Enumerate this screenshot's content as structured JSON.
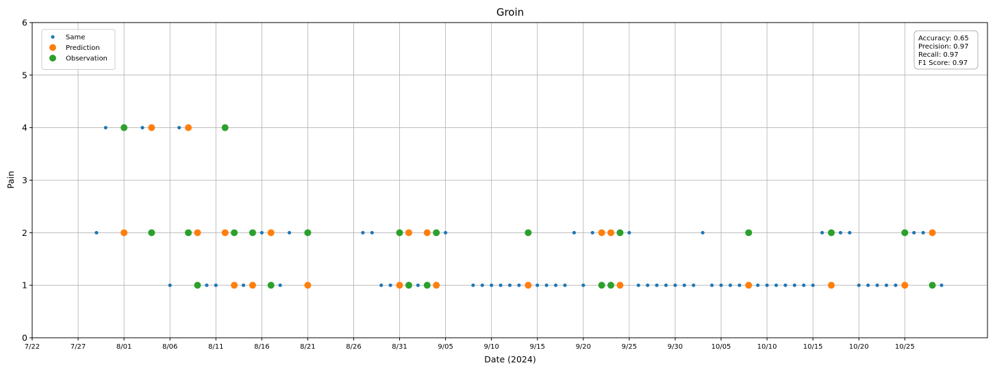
{
  "chart_data": {
    "type": "scatter",
    "title": "Groin",
    "xlabel": "Date (2024)",
    "ylabel": "Pain",
    "ylim": [
      0,
      6
    ],
    "xlim_days_from_jul22": [
      0,
      104
    ],
    "grid": true,
    "yticks": [
      "0",
      "1",
      "2",
      "3",
      "4",
      "5",
      "6"
    ],
    "xticks": [
      {
        "date": "2024-07-22",
        "label": "7/22"
      },
      {
        "date": "2024-07-27",
        "label": "7/27"
      },
      {
        "date": "2024-08-01",
        "label": "8/01"
      },
      {
        "date": "2024-08-06",
        "label": "8/06"
      },
      {
        "date": "2024-08-11",
        "label": "8/11"
      },
      {
        "date": "2024-08-16",
        "label": "8/16"
      },
      {
        "date": "2024-08-21",
        "label": "8/21"
      },
      {
        "date": "2024-08-26",
        "label": "8/26"
      },
      {
        "date": "2024-08-31",
        "label": "8/31"
      },
      {
        "date": "2024-09-05",
        "label": "9/05"
      },
      {
        "date": "2024-09-10",
        "label": "9/10"
      },
      {
        "date": "2024-09-15",
        "label": "9/15"
      },
      {
        "date": "2024-09-20",
        "label": "9/20"
      },
      {
        "date": "2024-09-25",
        "label": "9/25"
      },
      {
        "date": "2024-09-30",
        "label": "9/30"
      },
      {
        "date": "2024-10-05",
        "label": "10/05"
      },
      {
        "date": "2024-10-10",
        "label": "10/10"
      },
      {
        "date": "2024-10-15",
        "label": "10/15"
      },
      {
        "date": "2024-10-20",
        "label": "10/20"
      },
      {
        "date": "2024-10-25",
        "label": "10/25"
      }
    ],
    "legend_position": "top-left",
    "series": [
      {
        "name": "Same",
        "color": "#1f77b4",
        "marker": "small",
        "points": [
          {
            "x": "2024-07-29",
            "y": 2
          },
          {
            "x": "2024-07-30",
            "y": 4
          },
          {
            "x": "2024-08-03",
            "y": 4
          },
          {
            "x": "2024-08-06",
            "y": 1
          },
          {
            "x": "2024-08-07",
            "y": 4
          },
          {
            "x": "2024-08-10",
            "y": 1
          },
          {
            "x": "2024-08-11",
            "y": 1
          },
          {
            "x": "2024-08-14",
            "y": 1
          },
          {
            "x": "2024-08-16",
            "y": 2
          },
          {
            "x": "2024-08-18",
            "y": 1
          },
          {
            "x": "2024-08-19",
            "y": 2
          },
          {
            "x": "2024-08-27",
            "y": 2
          },
          {
            "x": "2024-08-28",
            "y": 2
          },
          {
            "x": "2024-08-29",
            "y": 1
          },
          {
            "x": "2024-08-30",
            "y": 1
          },
          {
            "x": "2024-09-02",
            "y": 1
          },
          {
            "x": "2024-09-05",
            "y": 2
          },
          {
            "x": "2024-09-08",
            "y": 1
          },
          {
            "x": "2024-09-09",
            "y": 1
          },
          {
            "x": "2024-09-10",
            "y": 1
          },
          {
            "x": "2024-09-11",
            "y": 1
          },
          {
            "x": "2024-09-12",
            "y": 1
          },
          {
            "x": "2024-09-13",
            "y": 1
          },
          {
            "x": "2024-09-15",
            "y": 1
          },
          {
            "x": "2024-09-16",
            "y": 1
          },
          {
            "x": "2024-09-17",
            "y": 1
          },
          {
            "x": "2024-09-18",
            "y": 1
          },
          {
            "x": "2024-09-19",
            "y": 2
          },
          {
            "x": "2024-09-20",
            "y": 1
          },
          {
            "x": "2024-09-21",
            "y": 2
          },
          {
            "x": "2024-09-25",
            "y": 2
          },
          {
            "x": "2024-09-26",
            "y": 1
          },
          {
            "x": "2024-09-27",
            "y": 1
          },
          {
            "x": "2024-09-28",
            "y": 1
          },
          {
            "x": "2024-09-29",
            "y": 1
          },
          {
            "x": "2024-09-30",
            "y": 1
          },
          {
            "x": "2024-10-01",
            "y": 1
          },
          {
            "x": "2024-10-02",
            "y": 1
          },
          {
            "x": "2024-10-03",
            "y": 2
          },
          {
            "x": "2024-10-04",
            "y": 1
          },
          {
            "x": "2024-10-05",
            "y": 1
          },
          {
            "x": "2024-10-06",
            "y": 1
          },
          {
            "x": "2024-10-07",
            "y": 1
          },
          {
            "x": "2024-10-09",
            "y": 1
          },
          {
            "x": "2024-10-10",
            "y": 1
          },
          {
            "x": "2024-10-11",
            "y": 1
          },
          {
            "x": "2024-10-12",
            "y": 1
          },
          {
            "x": "2024-10-13",
            "y": 1
          },
          {
            "x": "2024-10-14",
            "y": 1
          },
          {
            "x": "2024-10-15",
            "y": 1
          },
          {
            "x": "2024-10-16",
            "y": 2
          },
          {
            "x": "2024-10-18",
            "y": 2
          },
          {
            "x": "2024-10-19",
            "y": 2
          },
          {
            "x": "2024-10-20",
            "y": 1
          },
          {
            "x": "2024-10-21",
            "y": 1
          },
          {
            "x": "2024-10-22",
            "y": 1
          },
          {
            "x": "2024-10-23",
            "y": 1
          },
          {
            "x": "2024-10-24",
            "y": 1
          },
          {
            "x": "2024-10-26",
            "y": 2
          },
          {
            "x": "2024-10-27",
            "y": 2
          },
          {
            "x": "2024-10-29",
            "y": 1
          }
        ]
      },
      {
        "name": "Prediction",
        "color": "#ff7f0e",
        "marker": "large",
        "points": [
          {
            "x": "2024-08-01",
            "y": 2
          },
          {
            "x": "2024-08-04",
            "y": 4
          },
          {
            "x": "2024-08-08",
            "y": 4
          },
          {
            "x": "2024-08-09",
            "y": 2
          },
          {
            "x": "2024-08-12",
            "y": 2
          },
          {
            "x": "2024-08-13",
            "y": 1
          },
          {
            "x": "2024-08-15",
            "y": 1
          },
          {
            "x": "2024-08-17",
            "y": 2
          },
          {
            "x": "2024-08-21",
            "y": 1
          },
          {
            "x": "2024-08-31",
            "y": 1
          },
          {
            "x": "2024-09-01",
            "y": 2
          },
          {
            "x": "2024-09-03",
            "y": 2
          },
          {
            "x": "2024-09-04",
            "y": 1
          },
          {
            "x": "2024-09-14",
            "y": 1
          },
          {
            "x": "2024-09-22",
            "y": 2
          },
          {
            "x": "2024-09-23",
            "y": 2
          },
          {
            "x": "2024-09-24",
            "y": 1
          },
          {
            "x": "2024-10-08",
            "y": 1
          },
          {
            "x": "2024-10-17",
            "y": 1
          },
          {
            "x": "2024-10-25",
            "y": 1
          },
          {
            "x": "2024-10-28",
            "y": 2
          }
        ]
      },
      {
        "name": "Observation",
        "color": "#2ca02c",
        "marker": "large",
        "points": [
          {
            "x": "2024-08-01",
            "y": 4
          },
          {
            "x": "2024-08-04",
            "y": 2
          },
          {
            "x": "2024-08-08",
            "y": 2
          },
          {
            "x": "2024-08-09",
            "y": 1
          },
          {
            "x": "2024-08-12",
            "y": 4
          },
          {
            "x": "2024-08-13",
            "y": 2
          },
          {
            "x": "2024-08-15",
            "y": 2
          },
          {
            "x": "2024-08-17",
            "y": 1
          },
          {
            "x": "2024-08-21",
            "y": 2
          },
          {
            "x": "2024-08-31",
            "y": 2
          },
          {
            "x": "2024-09-01",
            "y": 1
          },
          {
            "x": "2024-09-03",
            "y": 1
          },
          {
            "x": "2024-09-04",
            "y": 2
          },
          {
            "x": "2024-09-14",
            "y": 2
          },
          {
            "x": "2024-09-22",
            "y": 1
          },
          {
            "x": "2024-09-23",
            "y": 1
          },
          {
            "x": "2024-09-24",
            "y": 2
          },
          {
            "x": "2024-10-08",
            "y": 2
          },
          {
            "x": "2024-10-17",
            "y": 2
          },
          {
            "x": "2024-10-25",
            "y": 2
          },
          {
            "x": "2024-10-28",
            "y": 1
          }
        ]
      }
    ],
    "metrics": [
      "Accuracy: 0.65",
      "Precision: 0.97",
      "Recall: 0.97",
      "F1 Score: 0.97"
    ],
    "metrics_position": "top-right"
  }
}
